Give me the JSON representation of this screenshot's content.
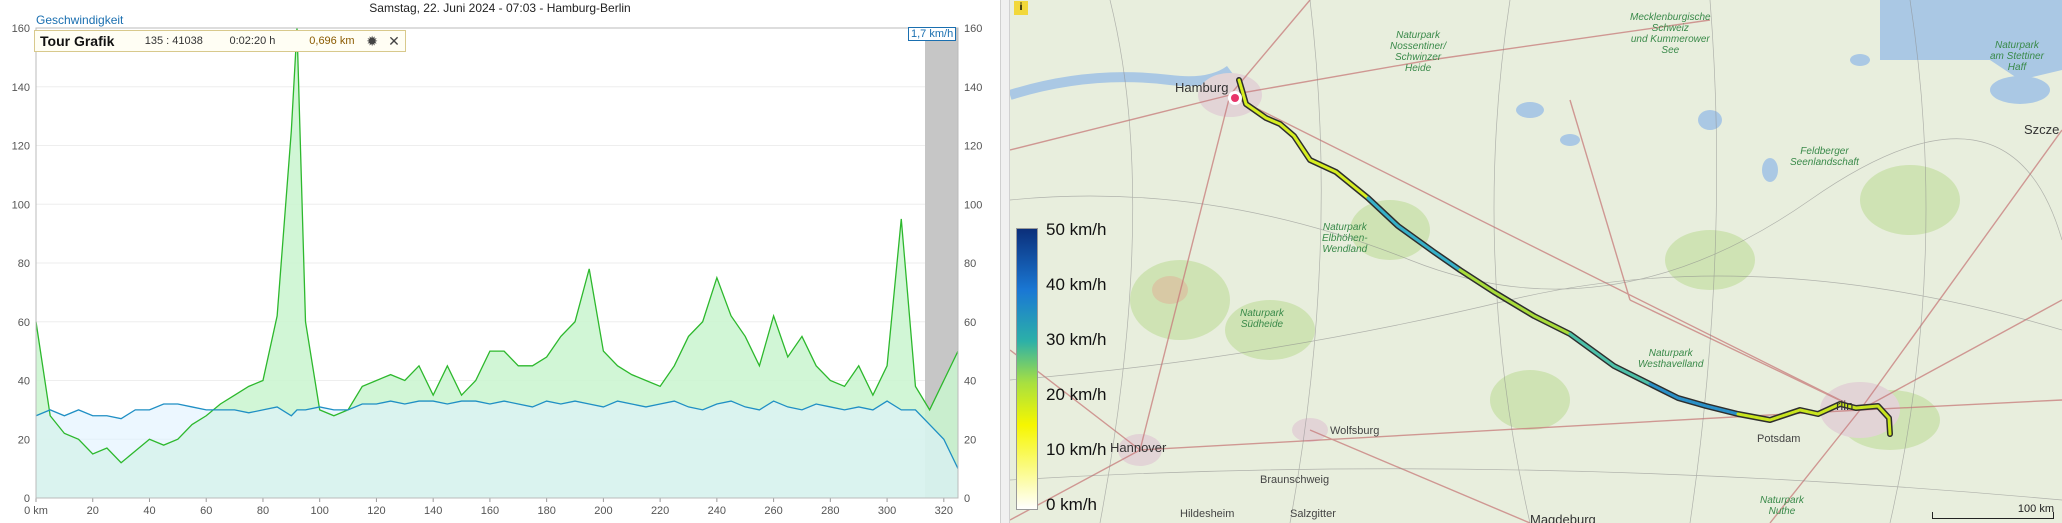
{
  "chart": {
    "title": "Samstag, 22. Juni 2024 - 07:03 - Hamburg-Berlin",
    "series_label": "Geschwindigkeit",
    "left_y_ticks": [
      "160",
      "140",
      "120",
      "100",
      "80",
      "60",
      "40",
      "20",
      "0"
    ],
    "right_y_ticks": [
      "160",
      "140",
      "120",
      "100",
      "80",
      "60",
      "40",
      "20",
      "0"
    ],
    "x_ticks": [
      "0 km",
      "20",
      "40",
      "60",
      "80",
      "100",
      "120",
      "140",
      "160",
      "180",
      "200",
      "220",
      "240",
      "260",
      "280",
      "300",
      "320"
    ],
    "readout": "1,7 km/h",
    "colors": {
      "green": "#2db82d",
      "green_fill": "#c9f5cf",
      "blue": "#1f8fc4",
      "blue_fill": "#dff1ff"
    }
  },
  "tour_panel": {
    "title": "Tour Grafik",
    "id": "135 : 41038",
    "duration": "0:02:20 h",
    "distance": "0,696 km",
    "settings_icon": "gear-icon",
    "close_icon": "close-icon"
  },
  "chart_data": {
    "type": "line",
    "xlabel": "",
    "ylabel": "",
    "xlim": [
      0,
      325
    ],
    "ylim": [
      0,
      160
    ],
    "x": [
      0,
      5,
      10,
      15,
      20,
      25,
      30,
      35,
      40,
      45,
      50,
      55,
      60,
      65,
      70,
      75,
      80,
      85,
      90,
      92,
      95,
      100,
      105,
      110,
      115,
      120,
      125,
      130,
      135,
      140,
      145,
      150,
      155,
      160,
      165,
      170,
      175,
      180,
      185,
      190,
      195,
      200,
      205,
      210,
      215,
      220,
      225,
      230,
      235,
      240,
      245,
      250,
      255,
      260,
      265,
      270,
      275,
      280,
      285,
      290,
      295,
      300,
      305,
      310,
      315,
      320,
      325
    ],
    "series": [
      {
        "name": "",
        "values": [
          60,
          28,
          22,
          20,
          15,
          17,
          12,
          16,
          20,
          18,
          20,
          25,
          28,
          32,
          35,
          38,
          40,
          62,
          125,
          160,
          60,
          30,
          28,
          30,
          38,
          40,
          42,
          40,
          45,
          35,
          45,
          35,
          40,
          50,
          50,
          45,
          45,
          48,
          55,
          60,
          78,
          50,
          45,
          42,
          40,
          38,
          45,
          55,
          60,
          75,
          62,
          55,
          45,
          62,
          48,
          55,
          45,
          40,
          38,
          45,
          35,
          45,
          95,
          38,
          30,
          40,
          50
        ]
      },
      {
        "name": "",
        "values": [
          28,
          30,
          28,
          30,
          28,
          28,
          27,
          30,
          30,
          32,
          32,
          31,
          30,
          30,
          30,
          29,
          30,
          31,
          28,
          30,
          30,
          31,
          30,
          30,
          32,
          32,
          33,
          32,
          33,
          33,
          32,
          33,
          33,
          32,
          33,
          32,
          31,
          33,
          32,
          33,
          32,
          31,
          33,
          32,
          31,
          32,
          33,
          31,
          30,
          32,
          33,
          31,
          30,
          33,
          31,
          30,
          32,
          31,
          30,
          31,
          30,
          33,
          30,
          30,
          25,
          20,
          10
        ]
      }
    ]
  },
  "map": {
    "info_label": "i",
    "legend": [
      "50 km/h",
      "40 km/h",
      "30 km/h",
      "20 km/h",
      "10 km/h",
      "0 km/h"
    ],
    "scale": "100 km",
    "cities": {
      "hamburg": "Hamburg",
      "hannover": "Hannover",
      "wolfsburg": "Wolfsburg",
      "braunschweig": "Braunschweig",
      "hildesheim": "Hildesheim",
      "salzgitter": "Salzgitter",
      "magdeburg": "Magdeburg",
      "potsdam": "Potsdam",
      "berlin": "rlin",
      "szczecin": "Szcze"
    },
    "parks": {
      "mecklenburg": "Mecklenburgische\nSchweiz\nund Kummerower\nSee",
      "nossentiner": "Naturpark\nNossentiner/\nSchwinzer\nHeide",
      "elbhoehen": "Naturpark\nElbhöhen-\nWendland",
      "suedheide": "Naturpark\nSüdheide",
      "feldberger": "Feldberger\nSeenlandschaft",
      "westhavelland": "Naturpark\nWesthavelland",
      "nuthe": "Naturpark\nNuthe",
      "stettiner": "Naturpark\nam Stettiner\nHaff"
    },
    "colors": {
      "route_high": "#1a5aa0",
      "route_mid": "#2ea0d0",
      "route_low": "#e8f000"
    }
  }
}
